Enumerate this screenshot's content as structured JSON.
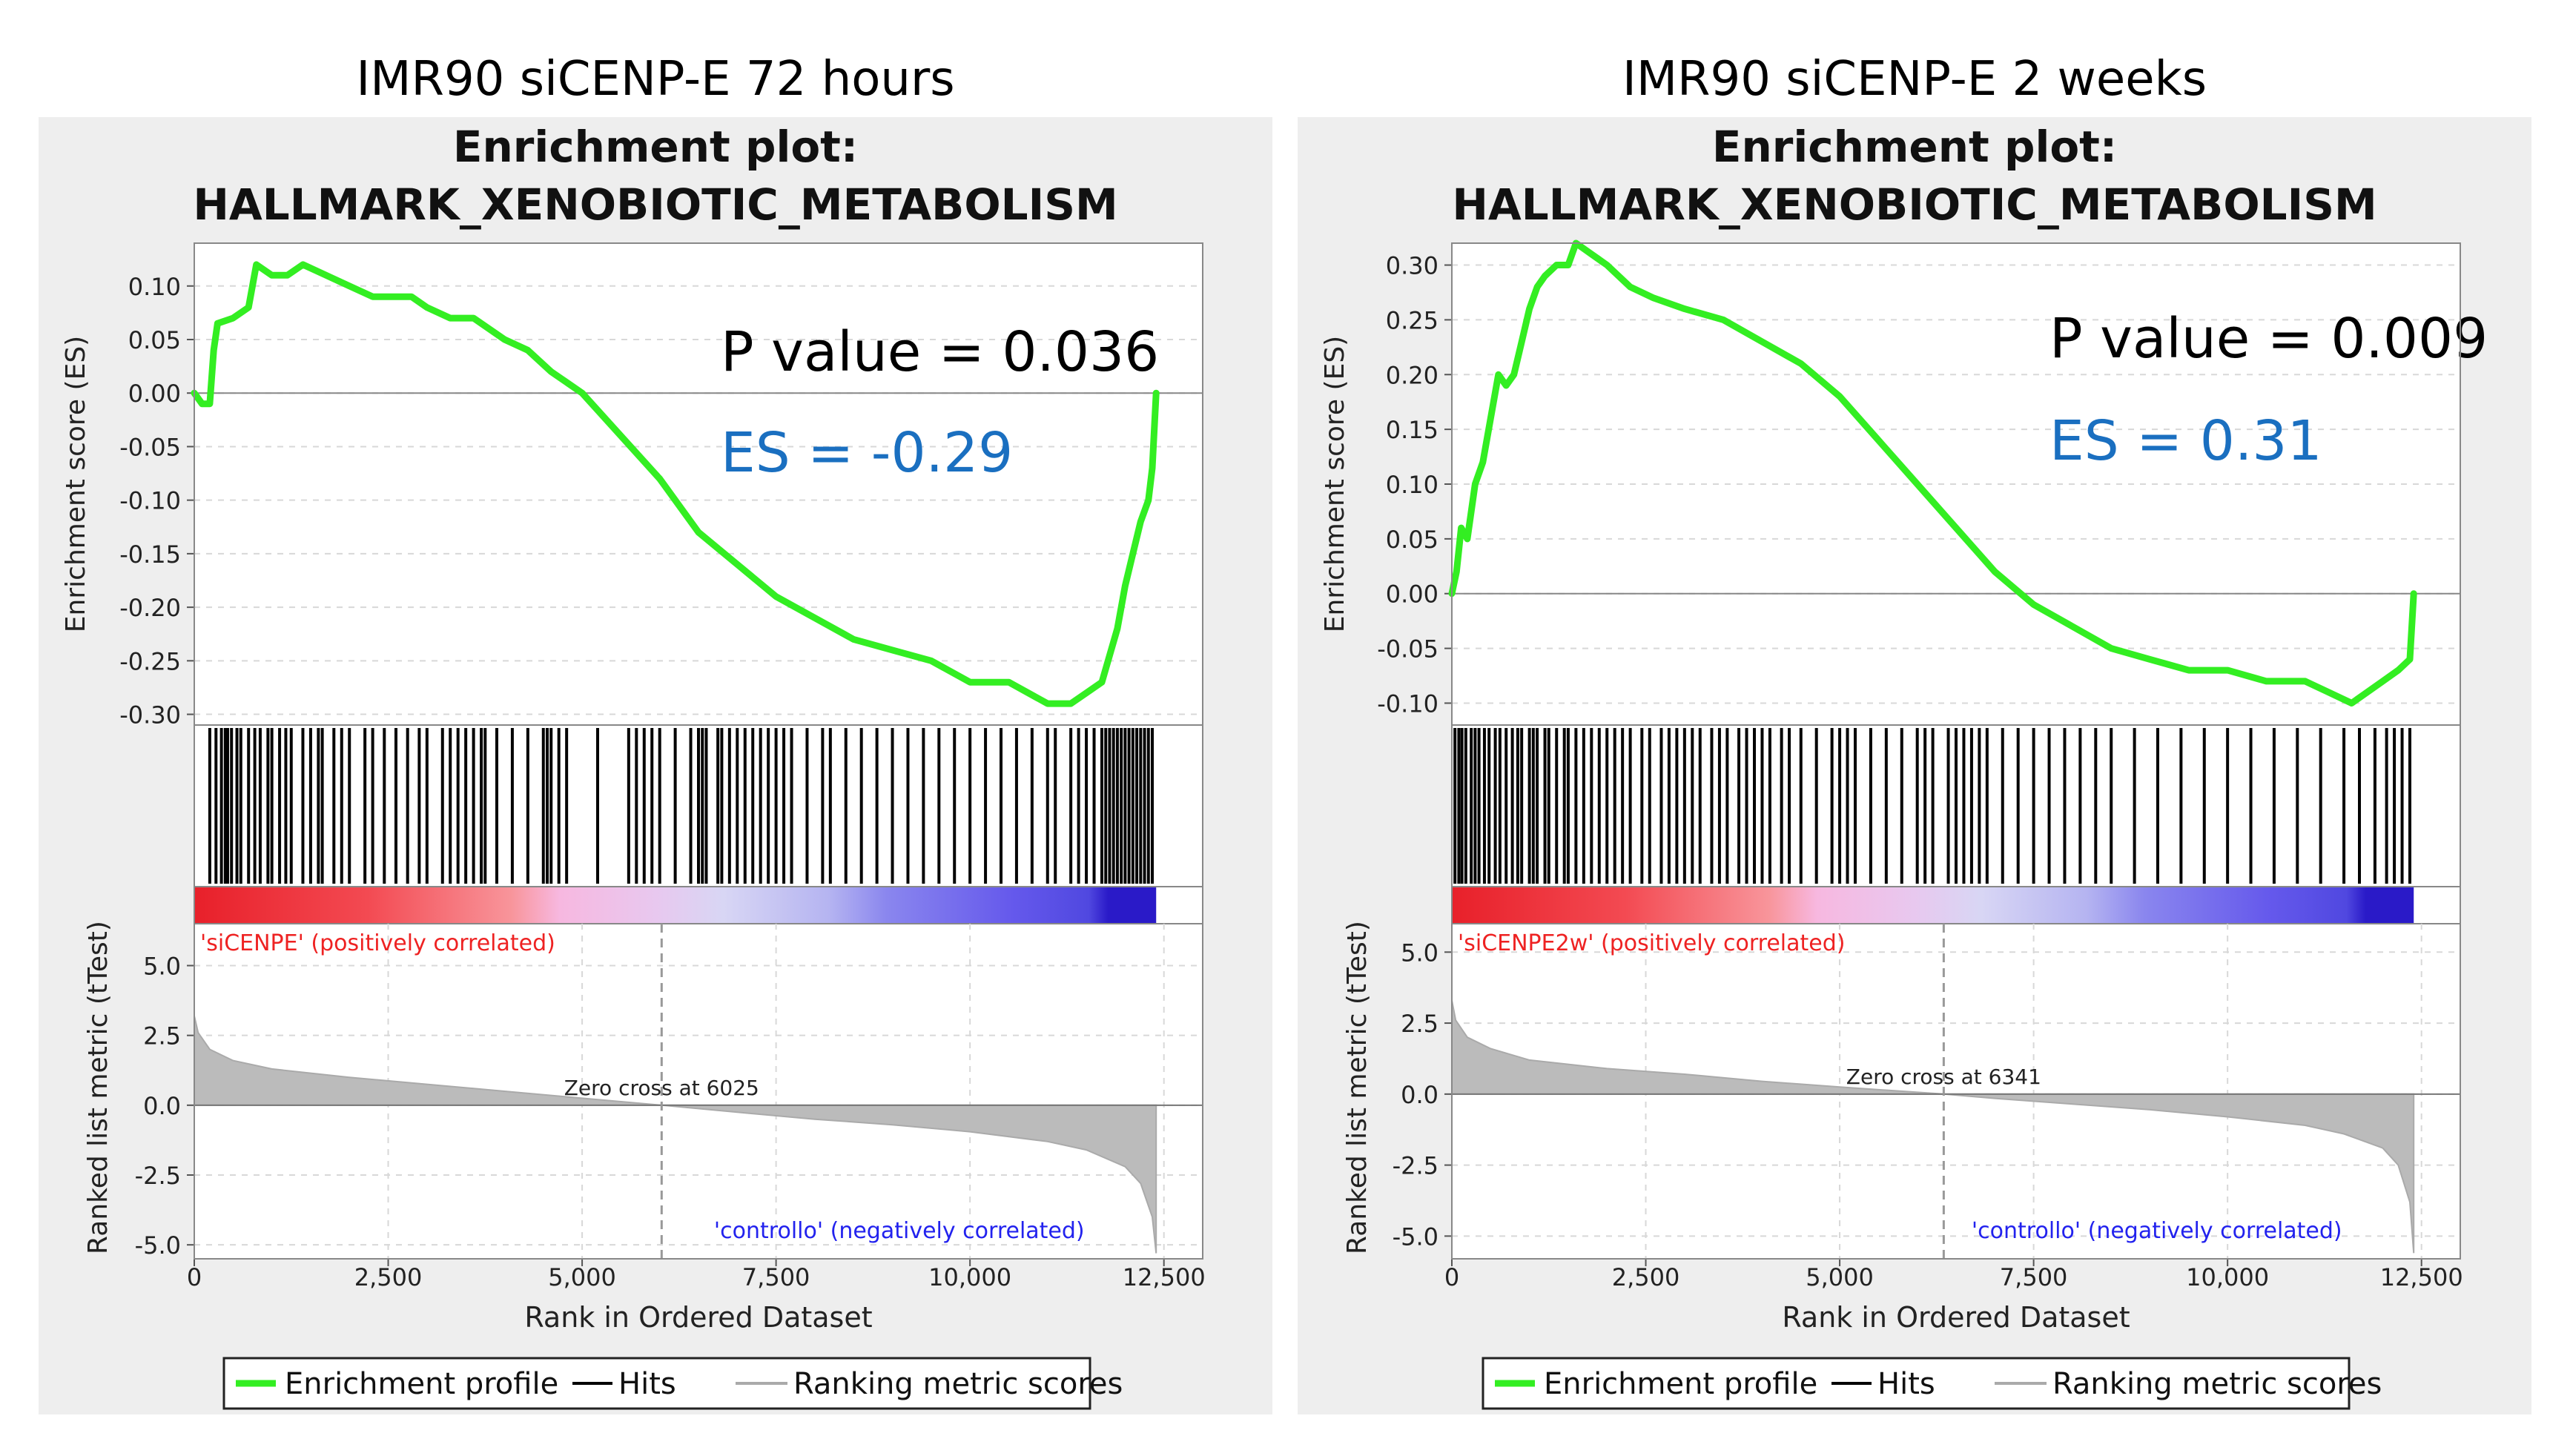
{
  "panels": [
    {
      "heading": "IMR90 siCENP-E 72 hours",
      "title_line1": "Enrichment plot:",
      "title_line2": "HALLMARK_XENOBIOTIC_METABOLISM",
      "p_value_text": "P value = 0.036",
      "es_text": "ES = -0.29",
      "pos_label": "'siCENPE' (positively correlated)",
      "neg_label": "'controllo' (negatively correlated)",
      "zero_cross_text": "Zero cross at 6025",
      "zero_cross": 6025
    },
    {
      "heading": "IMR90 siCENP-E 2 weeks",
      "title_line1": "Enrichment plot:",
      "title_line2": "HALLMARK_XENOBIOTIC_METABOLISM",
      "p_value_text": "P value = 0.009",
      "es_text": "ES = 0.31",
      "pos_label": "'siCENPE2w' (positively correlated)",
      "neg_label": "'controllo' (negatively correlated)",
      "zero_cross_text": "Zero cross at 6341",
      "zero_cross": 6341
    }
  ],
  "legend": {
    "enrichment": "Enrichment profile",
    "hits": "Hits",
    "ranking": "Ranking metric scores"
  },
  "colors": {
    "enrichment_line": "#33ee22",
    "pos_label": "#ee2222",
    "neg_label": "#2222ee",
    "es_text": "#1a6fc0",
    "panel_bg": "#eeeeee",
    "metric_fill": "#bbbbbb"
  },
  "chart_data": [
    {
      "type": "line",
      "title": "HALLMARK_XENOBIOTIC_METABOLISM",
      "ylabel": "Enrichment score (ES)",
      "ylim": [
        -0.31,
        0.14
      ],
      "yticks": [
        0.1,
        0.05,
        0.0,
        -0.05,
        -0.1,
        -0.15,
        -0.2,
        -0.25,
        -0.3
      ],
      "ytick_labels": [
        "0.10",
        "0.05",
        "0.00",
        "-0.05",
        "-0.10",
        "-0.15",
        "-0.20",
        "-0.25",
        "-0.30"
      ],
      "xlim": [
        0,
        13000
      ],
      "series": [
        {
          "name": "Enrichment profile",
          "x": [
            0,
            100,
            200,
            250,
            300,
            500,
            700,
            800,
            1000,
            1200,
            1400,
            1700,
            2000,
            2300,
            2600,
            2800,
            3000,
            3300,
            3600,
            4000,
            4300,
            4600,
            5000,
            5500,
            6000,
            6500,
            7000,
            7500,
            8000,
            8500,
            9000,
            9500,
            10000,
            10500,
            11000,
            11300,
            11500,
            11700,
            11900,
            12000,
            12100,
            12200,
            12300,
            12350,
            12400
          ],
          "y": [
            0.0,
            -0.01,
            -0.01,
            0.04,
            0.065,
            0.07,
            0.08,
            0.12,
            0.11,
            0.11,
            0.12,
            0.11,
            0.1,
            0.09,
            0.09,
            0.09,
            0.08,
            0.07,
            0.07,
            0.05,
            0.04,
            0.02,
            0.0,
            -0.04,
            -0.08,
            -0.13,
            -0.16,
            -0.19,
            -0.21,
            -0.23,
            -0.24,
            -0.25,
            -0.27,
            -0.27,
            -0.29,
            -0.29,
            -0.28,
            -0.27,
            -0.22,
            -0.18,
            -0.15,
            -0.12,
            -0.1,
            -0.07,
            0.0
          ]
        }
      ],
      "hits": [
        200,
        280,
        350,
        400,
        430,
        480,
        550,
        600,
        700,
        780,
        850,
        950,
        1000,
        1100,
        1180,
        1250,
        1400,
        1500,
        1600,
        1650,
        1800,
        1900,
        2000,
        2200,
        2300,
        2450,
        2600,
        2750,
        2900,
        3000,
        3200,
        3300,
        3400,
        3500,
        3600,
        3700,
        3750,
        3900,
        4100,
        4300,
        4500,
        4550,
        4600,
        4700,
        4800,
        5200,
        5600,
        5700,
        5800,
        5900,
        6000,
        6200,
        6400,
        6500,
        6550,
        6600,
        6750,
        6800,
        6900,
        7000,
        7100,
        7200,
        7300,
        7400,
        7500,
        7600,
        7700,
        7900,
        8100,
        8200,
        8400,
        8600,
        8800,
        9000,
        9200,
        9400,
        9600,
        9800,
        10000,
        10200,
        10400,
        10600,
        10800,
        11000,
        11100,
        11300,
        11400,
        11500,
        11600,
        11700,
        11750,
        11800,
        11850,
        11900,
        11950,
        12000,
        12050,
        12100,
        12150,
        12200,
        12250,
        12300,
        12350
      ],
      "metric": {
        "ylabel": "Ranked list metric (tTest)",
        "xlabel": "Rank in Ordered Dataset",
        "ylim": [
          -5.5,
          6.5
        ],
        "yticks": [
          5.0,
          2.5,
          0.0,
          -2.5,
          -5.0
        ],
        "ytick_labels": [
          "5.0",
          "2.5",
          "0.0",
          "-2.5",
          "-5.0"
        ],
        "xticks": [
          0,
          2500,
          5000,
          7500,
          10000,
          12500
        ],
        "xtick_labels": [
          "0",
          "2,500",
          "5,000",
          "7,500",
          "10,000",
          "12,500"
        ],
        "x": [
          0,
          50,
          200,
          500,
          1000,
          2000,
          3000,
          4000,
          5000,
          6025,
          7000,
          8000,
          9000,
          10000,
          11000,
          11500,
          12000,
          12200,
          12350,
          12400
        ],
        "y": [
          3.2,
          2.6,
          2.0,
          1.6,
          1.3,
          1.0,
          0.75,
          0.5,
          0.25,
          0.0,
          -0.25,
          -0.5,
          -0.7,
          -0.95,
          -1.3,
          -1.6,
          -2.2,
          -2.8,
          -4.0,
          -5.3
        ]
      }
    },
    {
      "type": "line",
      "title": "HALLMARK_XENOBIOTIC_METABOLISM",
      "ylabel": "Enrichment score (ES)",
      "ylim": [
        -0.12,
        0.32
      ],
      "yticks": [
        0.3,
        0.25,
        0.2,
        0.15,
        0.1,
        0.05,
        0.0,
        -0.05,
        -0.1
      ],
      "ytick_labels": [
        "0.30",
        "0.25",
        "0.20",
        "0.15",
        "0.10",
        "0.05",
        "0.00",
        "-0.05",
        "-0.10"
      ],
      "xlim": [
        0,
        13000
      ],
      "series": [
        {
          "name": "Enrichment profile",
          "x": [
            0,
            60,
            120,
            200,
            300,
            400,
            500,
            600,
            700,
            800,
            900,
            1000,
            1100,
            1200,
            1350,
            1500,
            1600,
            1800,
            2000,
            2300,
            2600,
            3000,
            3500,
            4000,
            4500,
            5000,
            5500,
            6000,
            6500,
            7000,
            7500,
            8000,
            8500,
            9000,
            9500,
            10000,
            10500,
            11000,
            11300,
            11600,
            11800,
            12000,
            12200,
            12350,
            12400
          ],
          "y": [
            0.0,
            0.02,
            0.06,
            0.05,
            0.1,
            0.12,
            0.16,
            0.2,
            0.19,
            0.2,
            0.23,
            0.26,
            0.28,
            0.29,
            0.3,
            0.3,
            0.32,
            0.31,
            0.3,
            0.28,
            0.27,
            0.26,
            0.25,
            0.23,
            0.21,
            0.18,
            0.14,
            0.1,
            0.06,
            0.02,
            -0.01,
            -0.03,
            -0.05,
            -0.06,
            -0.07,
            -0.07,
            -0.08,
            -0.08,
            -0.09,
            -0.1,
            -0.09,
            -0.08,
            -0.07,
            -0.06,
            0.0
          ]
        }
      ],
      "hits": [
        40,
        90,
        130,
        180,
        250,
        300,
        350,
        420,
        480,
        560,
        620,
        700,
        780,
        850,
        900,
        1000,
        1050,
        1100,
        1200,
        1250,
        1350,
        1450,
        1500,
        1600,
        1700,
        1800,
        1900,
        2000,
        2100,
        2200,
        2300,
        2450,
        2550,
        2700,
        2800,
        2900,
        3000,
        3100,
        3200,
        3350,
        3450,
        3550,
        3700,
        3800,
        3900,
        4000,
        4100,
        4250,
        4350,
        4500,
        4700,
        4900,
        5000,
        5100,
        5200,
        5400,
        5600,
        5800,
        6000,
        6100,
        6200,
        6400,
        6500,
        6600,
        6700,
        6800,
        6900,
        7100,
        7300,
        7500,
        7700,
        7900,
        8100,
        8300,
        8500,
        8800,
        9100,
        9400,
        9700,
        10000,
        10300,
        10600,
        10900,
        11200,
        11500,
        11700,
        11900,
        12050,
        12150,
        12250,
        12350
      ],
      "metric": {
        "ylabel": "Ranked list metric (tTest)",
        "xlabel": "Rank in Ordered Dataset",
        "ylim": [
          -5.8,
          6.0
        ],
        "yticks": [
          5.0,
          2.5,
          0.0,
          -2.5,
          -5.0
        ],
        "ytick_labels": [
          "5.0",
          "2.5",
          "0.0",
          "-2.5",
          "-5.0"
        ],
        "xticks": [
          0,
          2500,
          5000,
          7500,
          10000,
          12500
        ],
        "xtick_labels": [
          "0",
          "2,500",
          "5,000",
          "7,500",
          "10,000",
          "12,500"
        ],
        "x": [
          0,
          50,
          200,
          500,
          1000,
          2000,
          3000,
          4000,
          5000,
          6341,
          7000,
          8000,
          9000,
          10000,
          11000,
          11500,
          12000,
          12200,
          12350,
          12400
        ],
        "y": [
          3.3,
          2.6,
          2.0,
          1.6,
          1.2,
          0.9,
          0.7,
          0.45,
          0.25,
          0.0,
          -0.15,
          -0.35,
          -0.55,
          -0.8,
          -1.1,
          -1.4,
          -1.9,
          -2.5,
          -3.8,
          -5.6
        ]
      }
    }
  ]
}
